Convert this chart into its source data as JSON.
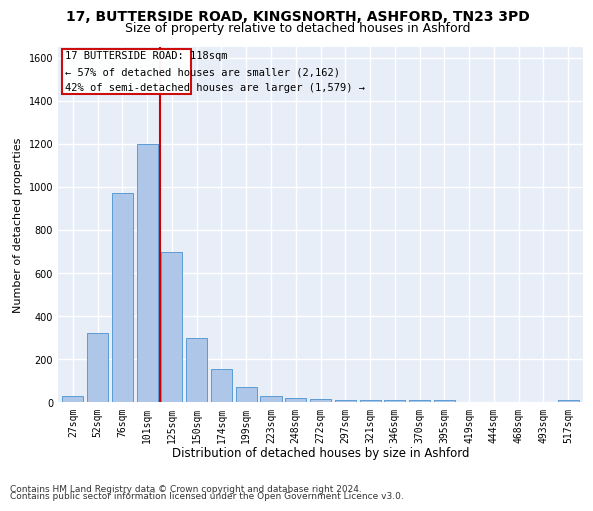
{
  "title1": "17, BUTTERSIDE ROAD, KINGSNORTH, ASHFORD, TN23 3PD",
  "title2": "Size of property relative to detached houses in Ashford",
  "xlabel": "Distribution of detached houses by size in Ashford",
  "ylabel": "Number of detached properties",
  "categories": [
    "27sqm",
    "52sqm",
    "76sqm",
    "101sqm",
    "125sqm",
    "150sqm",
    "174sqm",
    "199sqm",
    "223sqm",
    "248sqm",
    "272sqm",
    "297sqm",
    "321sqm",
    "346sqm",
    "370sqm",
    "395sqm",
    "419sqm",
    "444sqm",
    "468sqm",
    "493sqm",
    "517sqm"
  ],
  "values": [
    30,
    320,
    970,
    1200,
    700,
    300,
    155,
    70,
    30,
    20,
    15,
    12,
    10,
    10,
    10,
    10,
    0,
    0,
    0,
    0,
    10
  ],
  "bar_color": "#aec6e8",
  "bar_edge_color": "#5b9bd5",
  "annotation_line1": "17 BUTTERSIDE ROAD: 118sqm",
  "annotation_line2": "← 57% of detached houses are smaller (2,162)",
  "annotation_line3": "42% of semi-detached houses are larger (1,579) →",
  "annotation_box_color": "#cc0000",
  "vline_color": "#cc0000",
  "footer1": "Contains HM Land Registry data © Crown copyright and database right 2024.",
  "footer2": "Contains public sector information licensed under the Open Government Licence v3.0.",
  "ylim": [
    0,
    1650
  ],
  "background_color": "#e8eef8",
  "grid_color": "#ffffff",
  "fig_background": "#ffffff",
  "title1_fontsize": 10,
  "title2_fontsize": 9,
  "tick_fontsize": 7,
  "ylabel_fontsize": 8,
  "xlabel_fontsize": 8.5,
  "annotation_fontsize": 7.5,
  "footer_fontsize": 6.5
}
